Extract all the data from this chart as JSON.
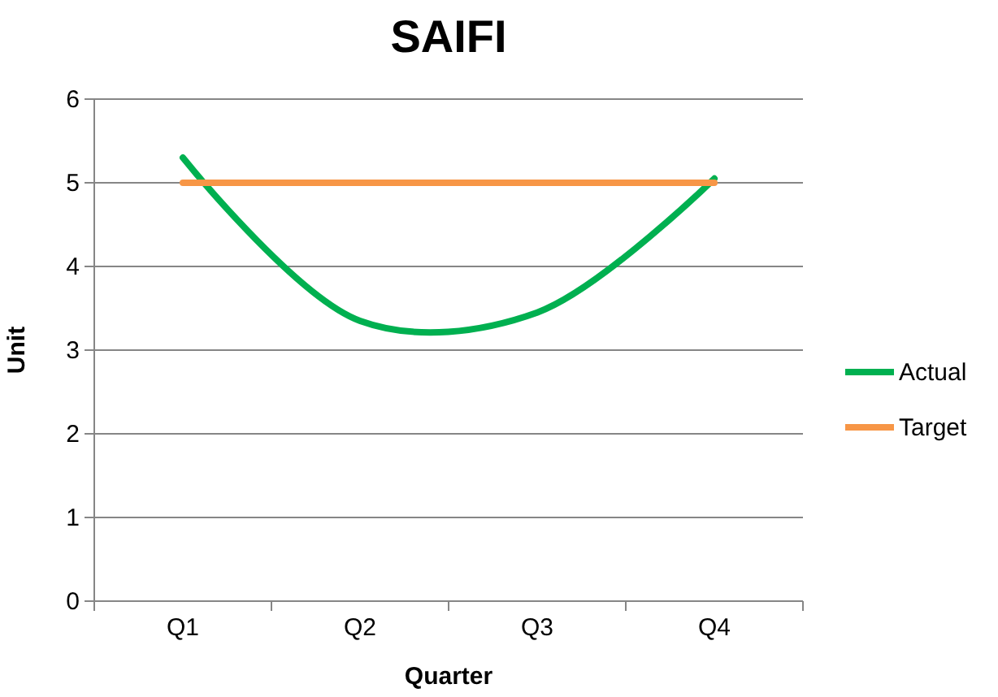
{
  "chart_data": {
    "type": "line",
    "title": "SAIFI",
    "xlabel": "Quarter",
    "ylabel": "Unit",
    "categories": [
      "Q1",
      "Q2",
      "Q3",
      "Q4"
    ],
    "series": [
      {
        "name": "Actual",
        "color": "#00b050",
        "values": [
          5.3,
          3.35,
          3.45,
          5.05
        ]
      },
      {
        "name": "Target",
        "color": "#f79646",
        "values": [
          5,
          5,
          5,
          5
        ]
      }
    ],
    "ylim": [
      0,
      6
    ],
    "yticks": [
      0,
      1,
      2,
      3,
      4,
      5,
      6
    ],
    "grid": "y",
    "legend": "right",
    "marker": "none",
    "line_style": "solid"
  }
}
